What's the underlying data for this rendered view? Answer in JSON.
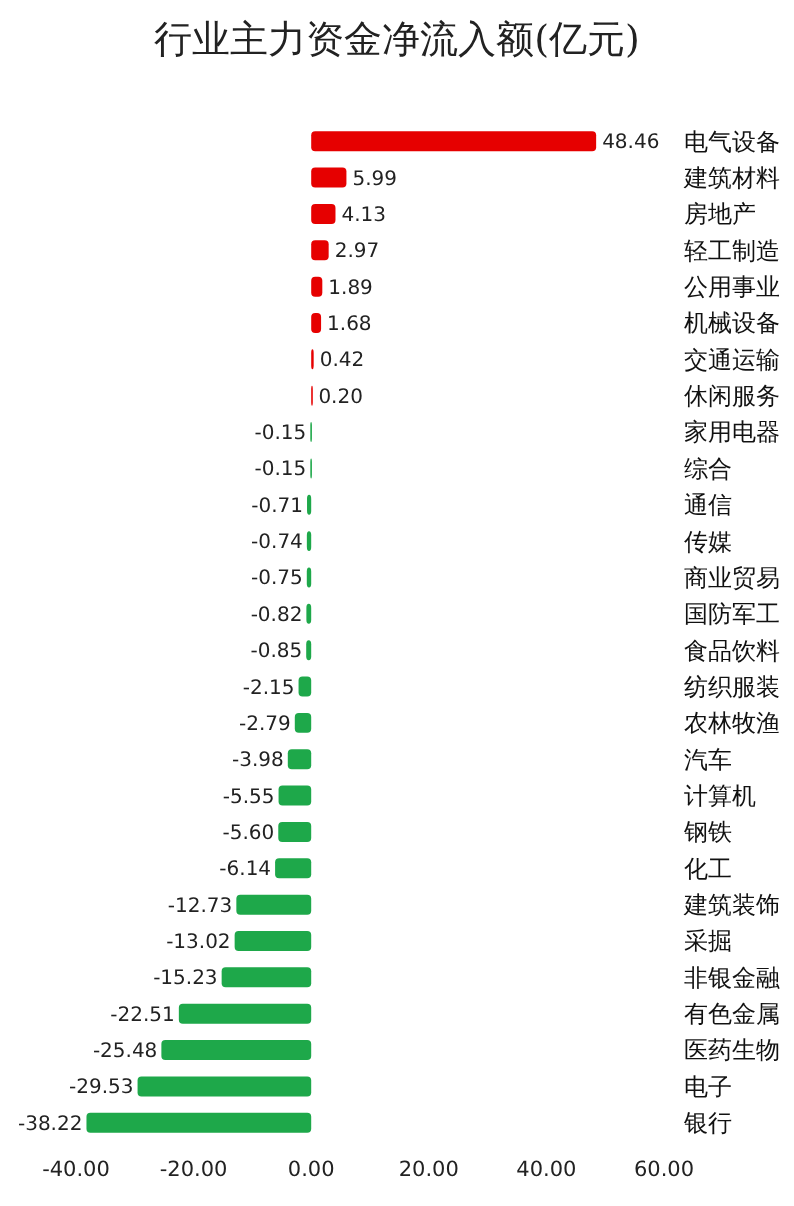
{
  "chart_data": {
    "type": "bar",
    "orientation": "horizontal",
    "title": "行业主力资金净流入额(亿元)",
    "categories": [
      "电气设备",
      "建筑材料",
      "房地产",
      "轻工制造",
      "公用事业",
      "机械设备",
      "交通运输",
      "休闲服务",
      "家用电器",
      "综合",
      "通信",
      "传媒",
      "商业贸易",
      "国防军工",
      "食品饮料",
      "纺织服装",
      "农林牧渔",
      "汽车",
      "计算机",
      "钢铁",
      "化工",
      "建筑装饰",
      "采掘",
      "非银金融",
      "有色金属",
      "医药生物",
      "电子",
      "银行"
    ],
    "values": [
      48.46,
      5.99,
      4.13,
      2.97,
      1.89,
      1.68,
      0.42,
      0.2,
      -0.15,
      -0.15,
      -0.71,
      -0.74,
      -0.75,
      -0.82,
      -0.85,
      -2.15,
      -2.79,
      -3.98,
      -5.55,
      -5.6,
      -6.14,
      -12.73,
      -13.02,
      -15.23,
      -22.51,
      -25.48,
      -29.53,
      -38.22
    ],
    "value_labels": [
      "48.46",
      "5.99",
      "4.13",
      "2.97",
      "1.89",
      "1.68",
      "0.42",
      "0.20",
      "-0.15",
      "-0.15",
      "-0.71",
      "-0.74",
      "-0.75",
      "-0.82",
      "-0.85",
      "-2.15",
      "-2.79",
      "-3.98",
      "-5.55",
      "-5.60",
      "-6.14",
      "-12.73",
      "-13.02",
      "-15.23",
      "-22.51",
      "-25.48",
      "-29.53",
      "-38.22"
    ],
    "colors": [
      "#e60000",
      "#e60000",
      "#e60000",
      "#e60000",
      "#e60000",
      "#e60000",
      "#e60000",
      "#e60000",
      "#1ea84a",
      "#1ea84a",
      "#1ea84a",
      "#1ea84a",
      "#1ea84a",
      "#1ea84a",
      "#1ea84a",
      "#1ea84a",
      "#1ea84a",
      "#1ea84a",
      "#1ea84a",
      "#1ea84a",
      "#1ea84a",
      "#1ea84a",
      "#1ea84a",
      "#1ea84a",
      "#1ea84a",
      "#1ea84a",
      "#1ea84a",
      "#1ea84a"
    ],
    "xlim": [
      -40,
      60
    ],
    "xticks": [
      {
        "value": -40,
        "label": "-40.00"
      },
      {
        "value": -20,
        "label": "-20.00"
      },
      {
        "value": 0,
        "label": "0.00"
      },
      {
        "value": 20,
        "label": "20.00"
      },
      {
        "value": 40,
        "label": "40.00"
      },
      {
        "value": 60,
        "label": "60.00"
      }
    ],
    "grid": false
  }
}
